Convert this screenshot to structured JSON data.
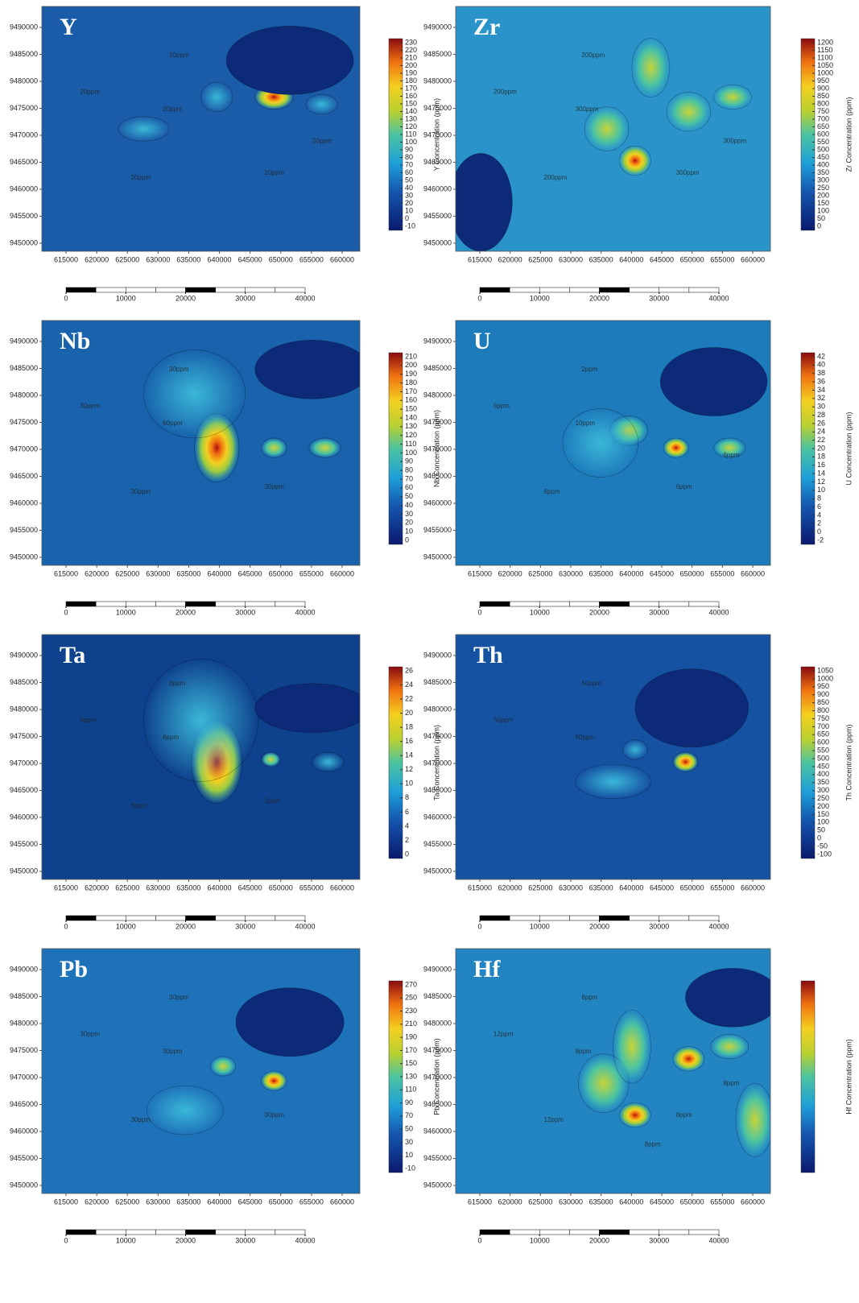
{
  "x_ticks": [
    615000,
    620000,
    625000,
    630000,
    635000,
    640000,
    645000,
    650000,
    655000,
    660000
  ],
  "y_ticks": [
    9490000,
    9485000,
    9480000,
    9475000,
    9470000,
    9465000,
    9460000,
    9455000,
    9450000
  ],
  "scale_ticks": [
    0,
    10000,
    20000,
    30000,
    40000
  ],
  "panels": [
    {
      "element": "Y",
      "color": "#1b5ca8",
      "colorbar_label": "Y Concentration (ppm)",
      "colorbar_ticks": [
        230,
        220,
        210,
        200,
        190,
        180,
        170,
        160,
        150,
        140,
        130,
        120,
        110,
        100,
        90,
        80,
        70,
        60,
        50,
        40,
        30,
        20,
        10,
        0,
        -10
      ],
      "contour_labels": [
        "20ppm",
        "20ppm",
        "20ppm",
        "20ppm",
        "20ppm",
        "20ppm"
      ]
    },
    {
      "element": "Zr",
      "color": "#2a93c9",
      "colorbar_label": "Zr Concentration (ppm)",
      "colorbar_ticks": [
        1200,
        1150,
        1100,
        1050,
        1000,
        950,
        900,
        850,
        800,
        750,
        700,
        650,
        600,
        550,
        500,
        450,
        400,
        350,
        300,
        250,
        200,
        150,
        100,
        50,
        0
      ],
      "contour_labels": [
        "200ppm",
        "200ppm",
        "300ppm",
        "200ppm",
        "300ppm",
        "300ppm"
      ]
    },
    {
      "element": "Nb",
      "color": "#1863ab",
      "colorbar_label": "Nb Concentration (ppm)",
      "colorbar_ticks": [
        210,
        200,
        190,
        180,
        170,
        160,
        150,
        140,
        130,
        120,
        110,
        100,
        90,
        80,
        70,
        60,
        50,
        40,
        30,
        20,
        10,
        0
      ],
      "contour_labels": [
        "30ppm",
        "30ppm",
        "60ppm",
        "30ppm",
        "30ppm"
      ]
    },
    {
      "element": "U",
      "color": "#1d7bbb",
      "colorbar_label": "U Concentration (ppm)",
      "colorbar_ticks": [
        42,
        40,
        38,
        36,
        34,
        32,
        30,
        28,
        26,
        24,
        22,
        20,
        18,
        16,
        14,
        12,
        10,
        8,
        6,
        4,
        2,
        0,
        -2
      ],
      "contour_labels": [
        "2ppm",
        "6ppm",
        "10ppm",
        "6ppm",
        "6ppm",
        "6ppm"
      ]
    },
    {
      "element": "Ta",
      "color": "#0f428d",
      "colorbar_label": "Ta Concentration (ppm)",
      "colorbar_ticks": [
        26,
        24,
        22,
        20,
        18,
        16,
        14,
        12,
        10,
        8,
        6,
        4,
        2,
        0
      ],
      "contour_labels": [
        "6ppm",
        "6ppm",
        "6ppm",
        "6ppm",
        "2ppm"
      ]
    },
    {
      "element": "Th",
      "color": "#1652a2",
      "colorbar_label": "Th Concentration (ppm)",
      "colorbar_ticks": [
        1050,
        1000,
        950,
        900,
        850,
        800,
        750,
        700,
        650,
        600,
        550,
        500,
        450,
        400,
        350,
        300,
        250,
        200,
        150,
        100,
        50,
        0,
        -50,
        -100
      ],
      "contour_labels": [
        "50ppm",
        "50ppm",
        "50ppm"
      ]
    },
    {
      "element": "Pb",
      "color": "#1e72b9",
      "colorbar_label": "Pb Concentration (ppm)",
      "colorbar_ticks": [
        270,
        250,
        230,
        210,
        190,
        170,
        150,
        130,
        110,
        90,
        70,
        50,
        30,
        10,
        -10
      ],
      "contour_labels": [
        "30ppm",
        "30ppm",
        "30ppm",
        "30ppm",
        "30ppm"
      ]
    },
    {
      "element": "Hf",
      "color": "#2384c2",
      "colorbar_label": "Hf Concentration (ppm)",
      "contour_labels": [
        "8ppm",
        "12ppm",
        "8ppm",
        "12ppm",
        "8ppm",
        "8ppm",
        "8ppm"
      ]
    }
  ]
}
